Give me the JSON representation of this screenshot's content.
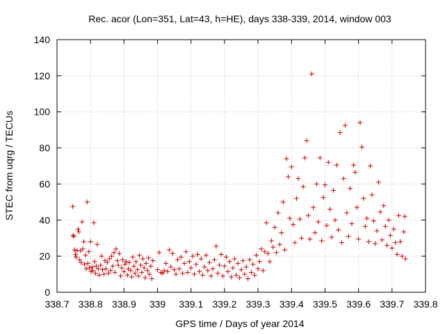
{
  "chart_data": {
    "type": "scatter",
    "title": "Rec. acor (Lon=351, Lat=43, h=HE), days 338-339, 2014, window 003",
    "xlabel": "GPS time / Days of year 2014",
    "ylabel": "STEC from uqrg / TECUs",
    "xlim": [
      338.7,
      339.8
    ],
    "ylim": [
      0,
      140
    ],
    "x_ticks": [
      "338.7",
      "338.8",
      "338.9",
      "339",
      "339.1",
      "339.2",
      "339.3",
      "339.4",
      "339.5",
      "339.6",
      "339.7",
      "339.8"
    ],
    "y_ticks": [
      "0",
      "20",
      "40",
      "60",
      "80",
      "100",
      "120",
      "140"
    ],
    "marker": "+",
    "color": "#cc0000",
    "grid": true,
    "grid_style": "dotted",
    "series": [
      {
        "points": [
          [
            338.747,
            47.5
          ],
          [
            338.748,
            31.5
          ],
          [
            338.75,
            31.0
          ],
          [
            338.752,
            23.5
          ],
          [
            338.755,
            21.0
          ],
          [
            338.757,
            19.5
          ],
          [
            338.76,
            23.0
          ],
          [
            338.763,
            35.0
          ],
          [
            338.765,
            33.5
          ],
          [
            338.767,
            18.0
          ],
          [
            338.77,
            23.0
          ],
          [
            338.772,
            16.5
          ],
          [
            338.775,
            39.0
          ],
          [
            338.777,
            24.0
          ],
          [
            338.78,
            28.0
          ],
          [
            338.782,
            15.5
          ],
          [
            338.785,
            20.5
          ],
          [
            338.787,
            13.0
          ],
          [
            338.79,
            50.0
          ],
          [
            338.792,
            16.0
          ],
          [
            338.795,
            22.5
          ],
          [
            338.797,
            13.5
          ],
          [
            338.8,
            28.0
          ],
          [
            338.802,
            11.5
          ],
          [
            338.805,
            14.0
          ],
          [
            338.807,
            12.0
          ],
          [
            338.81,
            38.5
          ],
          [
            338.812,
            17.0
          ],
          [
            338.815,
            10.5
          ],
          [
            338.817,
            14.5
          ],
          [
            338.82,
            26.5
          ],
          [
            338.823,
            13.0
          ],
          [
            338.826,
            9.5
          ],
          [
            338.83,
            15.0
          ],
          [
            338.833,
            20.0
          ],
          [
            338.836,
            12.5
          ],
          [
            338.84,
            10.0
          ],
          [
            338.843,
            17.5
          ],
          [
            338.846,
            13.0
          ],
          [
            338.85,
            16.5
          ],
          [
            338.853,
            10.5
          ],
          [
            338.856,
            18.5
          ],
          [
            338.86,
            12.0
          ],
          [
            338.863,
            20.0
          ],
          [
            338.866,
            14.5
          ],
          [
            338.87,
            22.0
          ],
          [
            338.873,
            11.0
          ],
          [
            338.876,
            24.0
          ],
          [
            338.88,
            17.5
          ],
          [
            338.883,
            15.0
          ],
          [
            338.886,
            21.5
          ],
          [
            338.89,
            9.0
          ],
          [
            338.893,
            13.5
          ],
          [
            338.896,
            18.0
          ],
          [
            338.9,
            11.5
          ],
          [
            338.903,
            15.5
          ],
          [
            338.906,
            17.0
          ],
          [
            338.91,
            9.5
          ],
          [
            338.913,
            13.0
          ],
          [
            338.916,
            16.5
          ],
          [
            338.92,
            12.0
          ],
          [
            338.923,
            8.5
          ],
          [
            338.926,
            19.5
          ],
          [
            338.93,
            14.5
          ],
          [
            338.933,
            10.5
          ],
          [
            338.936,
            17.0
          ],
          [
            338.94,
            12.5
          ],
          [
            338.943,
            9.0
          ],
          [
            338.946,
            20.5
          ],
          [
            338.95,
            15.0
          ],
          [
            338.953,
            11.0
          ],
          [
            338.956,
            18.5
          ],
          [
            338.96,
            13.5
          ],
          [
            338.963,
            8.0
          ],
          [
            338.966,
            16.0
          ],
          [
            338.97,
            12.0
          ],
          [
            338.973,
            19.0
          ],
          [
            338.976,
            10.0
          ],
          [
            338.98,
            14.5
          ],
          [
            338.983,
            7.5
          ],
          [
            338.986,
            17.5
          ],
          [
            339.0,
            12.5
          ],
          [
            339.005,
            22.0
          ],
          [
            339.01,
            11.0
          ],
          [
            339.015,
            10.5
          ],
          [
            339.02,
            12.0
          ],
          [
            339.025,
            16.0
          ],
          [
            339.03,
            11.5
          ],
          [
            339.035,
            23.5
          ],
          [
            339.04,
            14.0
          ],
          [
            339.045,
            21.5
          ],
          [
            339.05,
            12.5
          ],
          [
            339.055,
            10.0
          ],
          [
            339.06,
            18.0
          ],
          [
            339.065,
            13.0
          ],
          [
            339.07,
            19.5
          ],
          [
            339.075,
            10.5
          ],
          [
            339.08,
            16.0
          ],
          [
            339.085,
            22.5
          ],
          [
            339.09,
            11.0
          ],
          [
            339.095,
            17.0
          ],
          [
            339.1,
            13.5
          ],
          [
            339.105,
            20.0
          ],
          [
            339.11,
            10.0
          ],
          [
            339.115,
            15.5
          ],
          [
            339.12,
            21.0
          ],
          [
            339.125,
            11.5
          ],
          [
            339.13,
            18.5
          ],
          [
            339.135,
            9.5
          ],
          [
            339.14,
            14.0
          ],
          [
            339.145,
            20.5
          ],
          [
            339.15,
            12.0
          ],
          [
            339.155,
            16.5
          ],
          [
            339.16,
            9.0
          ],
          [
            339.165,
            13.0
          ],
          [
            339.17,
            18.0
          ],
          [
            339.175,
            25.5
          ],
          [
            339.18,
            10.5
          ],
          [
            339.185,
            15.0
          ],
          [
            339.19,
            21.0
          ],
          [
            339.195,
            9.0
          ],
          [
            339.2,
            14.5
          ],
          [
            339.205,
            19.5
          ],
          [
            339.21,
            11.5
          ],
          [
            339.215,
            17.0
          ],
          [
            339.22,
            8.5
          ],
          [
            339.225,
            13.5
          ],
          [
            339.23,
            18.5
          ],
          [
            339.235,
            9.5
          ],
          [
            339.24,
            16.0
          ],
          [
            339.245,
            8.0
          ],
          [
            339.25,
            12.5
          ],
          [
            339.255,
            17.5
          ],
          [
            339.26,
            10.0
          ],
          [
            339.265,
            14.0
          ],
          [
            339.27,
            7.5
          ],
          [
            339.275,
            18.0
          ],
          [
            339.28,
            11.0
          ],
          [
            339.285,
            15.5
          ],
          [
            339.29,
            9.5
          ],
          [
            339.295,
            20.5
          ],
          [
            339.3,
            13.0
          ],
          [
            339.305,
            17.0
          ],
          [
            339.31,
            24.0
          ],
          [
            339.315,
            12.0
          ],
          [
            339.32,
            22.5
          ],
          [
            339.325,
            38.5
          ],
          [
            339.33,
            21.5
          ],
          [
            339.335,
            17.0
          ],
          [
            339.34,
            28.5
          ],
          [
            339.345,
            25.0
          ],
          [
            339.35,
            36.0
          ],
          [
            339.355,
            22.0
          ],
          [
            339.36,
            44.0
          ],
          [
            339.365,
            26.5
          ],
          [
            339.37,
            33.0
          ],
          [
            339.375,
            50.0
          ],
          [
            339.38,
            23.5
          ],
          [
            339.385,
            74.0
          ],
          [
            339.39,
            64.0
          ],
          [
            339.395,
            41.0
          ],
          [
            339.4,
            69.5
          ],
          [
            339.405,
            37.5
          ],
          [
            339.41,
            27.5
          ],
          [
            339.415,
            52.0
          ],
          [
            339.42,
            63.0
          ],
          [
            339.425,
            40.5
          ],
          [
            339.43,
            30.0
          ],
          [
            339.435,
            58.5
          ],
          [
            339.44,
            74.5
          ],
          [
            339.445,
            84.0
          ],
          [
            339.45,
            42.5
          ],
          [
            339.455,
            29.5
          ],
          [
            339.46,
            121.0
          ],
          [
            339.465,
            47.0
          ],
          [
            339.47,
            33.0
          ],
          [
            339.475,
            60.0
          ],
          [
            339.48,
            39.0
          ],
          [
            339.485,
            74.5
          ],
          [
            339.49,
            28.5
          ],
          [
            339.495,
            52.5
          ],
          [
            339.5,
            59.5
          ],
          [
            339.505,
            37.0
          ],
          [
            339.51,
            72.0
          ],
          [
            339.515,
            46.0
          ],
          [
            339.52,
            30.5
          ],
          [
            339.525,
            56.5
          ],
          [
            339.53,
            40.0
          ],
          [
            339.535,
            70.5
          ],
          [
            339.54,
            34.5
          ],
          [
            339.545,
            88.5
          ],
          [
            339.55,
            27.5
          ],
          [
            339.555,
            63.0
          ],
          [
            339.56,
            92.5
          ],
          [
            339.565,
            44.0
          ],
          [
            339.57,
            31.0
          ],
          [
            339.575,
            57.5
          ],
          [
            339.58,
            38.0
          ],
          [
            339.585,
            70.5
          ],
          [
            339.59,
            66.5
          ],
          [
            339.595,
            47.0
          ],
          [
            339.6,
            29.5
          ],
          [
            339.605,
            94.0
          ],
          [
            339.61,
            80.5
          ],
          [
            339.615,
            52.0
          ],
          [
            339.62,
            36.5
          ],
          [
            339.625,
            41.0
          ],
          [
            339.63,
            28.0
          ],
          [
            339.635,
            70.0
          ],
          [
            339.64,
            54.0
          ],
          [
            339.645,
            39.5
          ],
          [
            339.65,
            27.0
          ],
          [
            339.655,
            34.0
          ],
          [
            339.66,
            61.0
          ],
          [
            339.665,
            44.5
          ],
          [
            339.67,
            29.0
          ],
          [
            339.675,
            48.0
          ],
          [
            339.68,
            36.5
          ],
          [
            339.685,
            26.0
          ],
          [
            339.69,
            40.0
          ],
          [
            339.695,
            31.5
          ],
          [
            339.7,
            24.5
          ],
          [
            339.705,
            35.0
          ],
          [
            339.71,
            27.5
          ],
          [
            339.715,
            21.0
          ],
          [
            339.72,
            42.5
          ],
          [
            339.725,
            28.0
          ],
          [
            339.73,
            20.0
          ],
          [
            339.735,
            33.5
          ],
          [
            339.738,
            42.0
          ],
          [
            339.74,
            18.5
          ]
        ]
      }
    ]
  }
}
